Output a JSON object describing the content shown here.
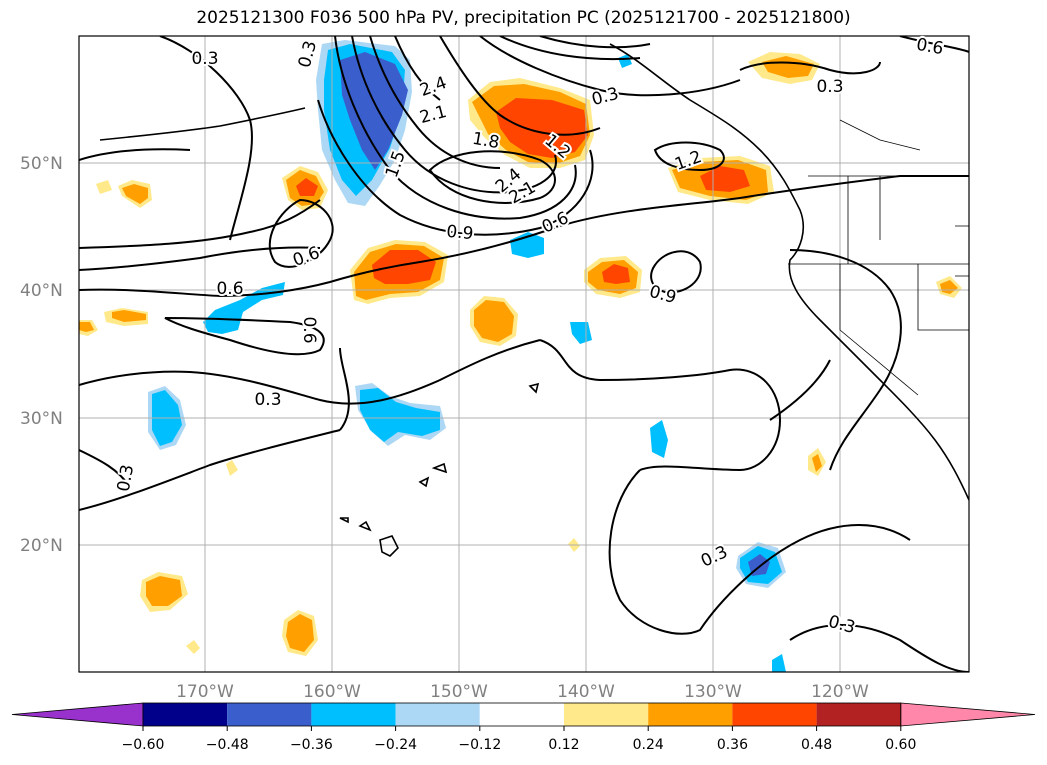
{
  "title": "2025121300 F036 500 hPa PV, precipitation PC (2025121700 - 2025121800)",
  "map": {
    "lat_labels": [
      "50°N",
      "40°N",
      "30°N",
      "20°N"
    ],
    "lon_labels": [
      "170°W",
      "160°W",
      "150°W",
      "140°W",
      "130°W",
      "120°W"
    ]
  },
  "contour_labels": [
    "0.3",
    "0.3",
    "2.4",
    "2.1",
    "1.8",
    "1.5",
    "1.2",
    "2.4",
    "2.1",
    "0.9",
    "0.6",
    "0.3",
    "1.2",
    "0.3",
    "0.6",
    "0.6",
    "0.6",
    "0.9",
    "0.6",
    "0.3",
    "0.3",
    "0.3",
    "0.3"
  ],
  "colorbar": {
    "ticks": [
      "−0.60",
      "−0.48",
      "−0.36",
      "−0.24",
      "−0.12",
      "0.12",
      "0.24",
      "0.36",
      "0.48",
      "0.60"
    ],
    "colors": [
      "#9932cc",
      "#00008b",
      "#3a5fcd",
      "#00bfff",
      "#add8f5",
      "#ffffff",
      "#ffe98a",
      "#ffa000",
      "#ff4500",
      "#b22222",
      "#ff88aa"
    ]
  },
  "colors": {
    "neg_strong": "#3a5fcd",
    "neg_mid": "#00bfff",
    "neg_weak": "#add8f5",
    "pos_weak": "#ffe98a",
    "pos_mid": "#ffa000",
    "pos_strong": "#ff4500",
    "grid": "#b0b0b0"
  }
}
